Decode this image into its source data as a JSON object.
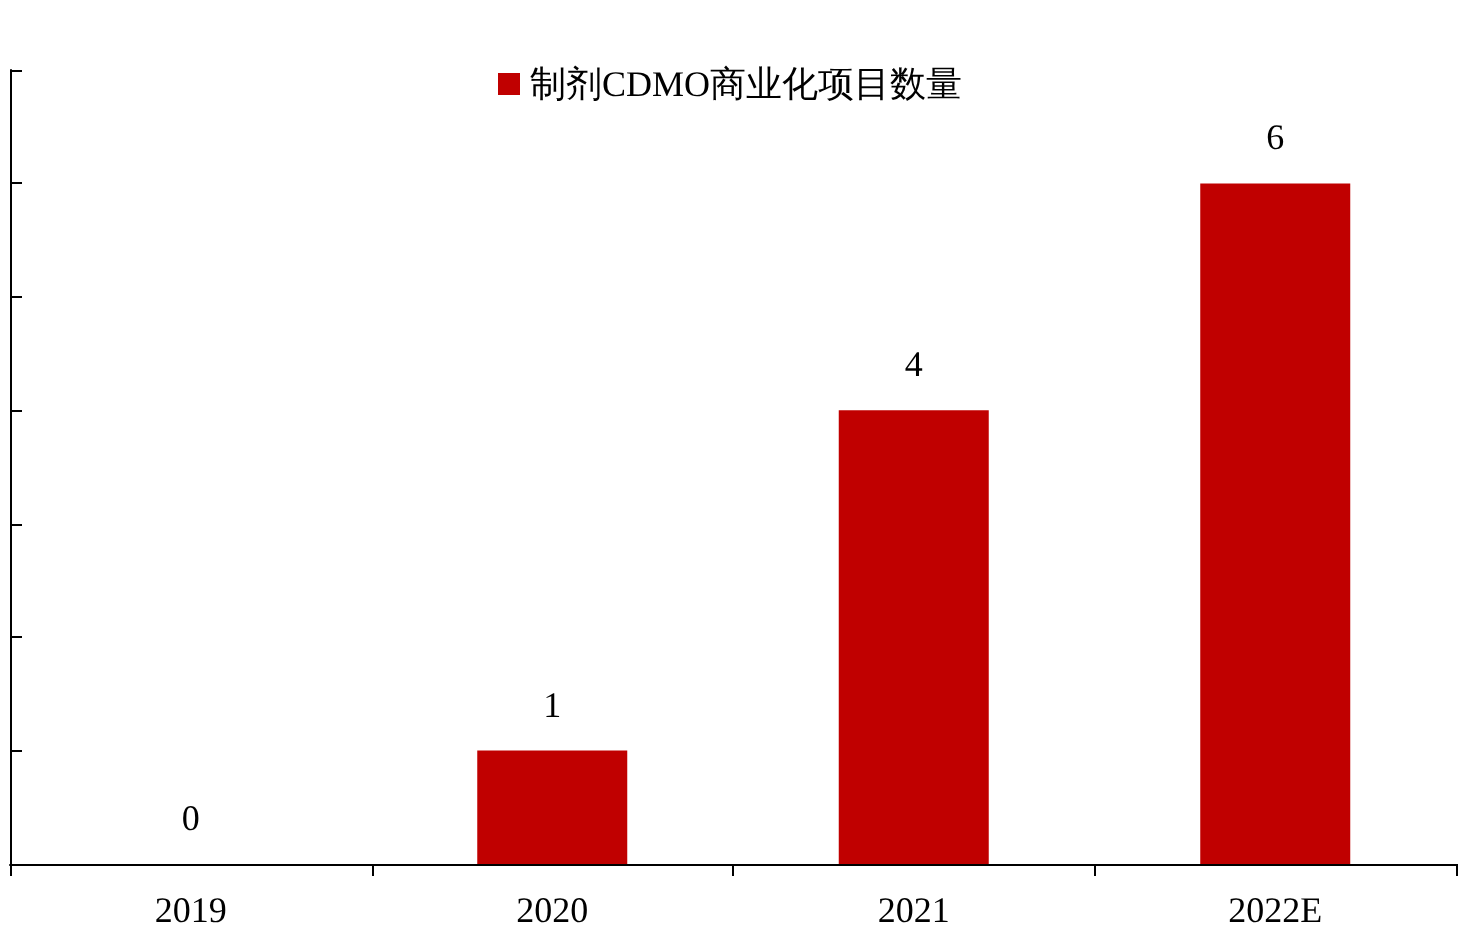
{
  "chart_data": {
    "type": "bar",
    "categories": [
      "2019",
      "2020",
      "2021",
      "2022E"
    ],
    "series": [
      {
        "name": "制剂CDMO商业化项目数量",
        "color": "#c00000",
        "values": [
          0,
          1,
          4,
          6
        ]
      }
    ],
    "ylim": [
      0,
      7
    ],
    "yticks": [
      {
        "value": 0,
        "label": null
      },
      {
        "value": 1,
        "label": null
      },
      {
        "value": 2,
        "label": null
      },
      {
        "value": 3,
        "label": null
      },
      {
        "value": 4,
        "label": null
      },
      {
        "value": 5,
        "label": null
      },
      {
        "value": 6,
        "label": null
      },
      {
        "value": 7,
        "label": null
      }
    ],
    "tick_labels": "x",
    "grid": false,
    "legend": "top",
    "data_labels": true
  }
}
